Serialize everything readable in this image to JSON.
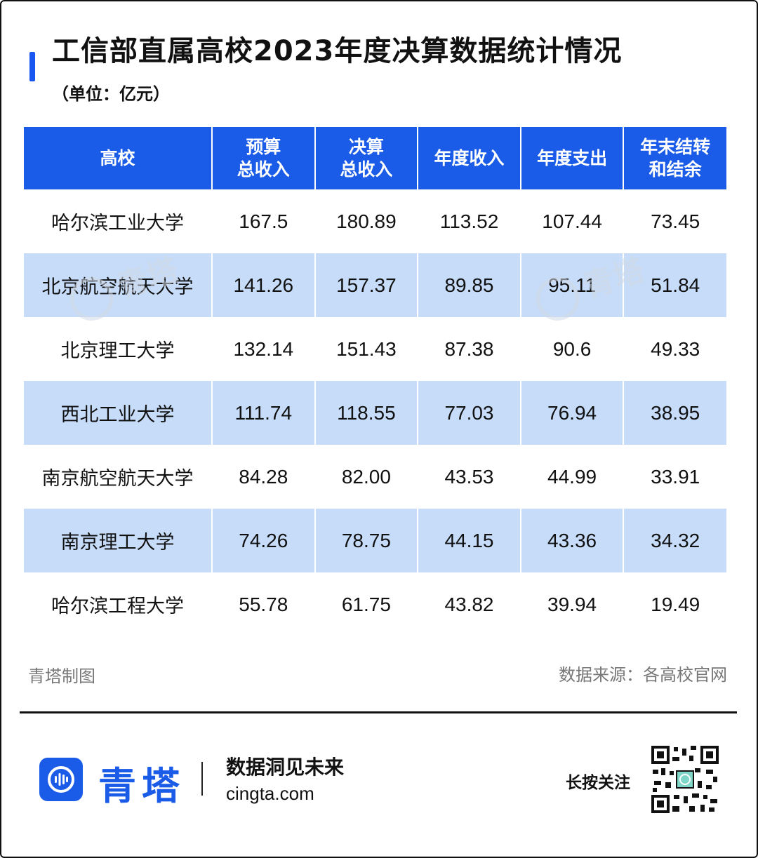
{
  "title": "工信部直属高校2023年度决算数据统计情况",
  "unit": "（单位：亿元）",
  "watermark": "青塔",
  "chart_data": {
    "type": "table",
    "columns": [
      {
        "line1": "高校",
        "line2": ""
      },
      {
        "line1": "预算",
        "line2": "总收入"
      },
      {
        "line1": "决算",
        "line2": "总收入"
      },
      {
        "line1": "年度收入",
        "line2": ""
      },
      {
        "line1": "年度支出",
        "line2": ""
      },
      {
        "line1": "年末结转",
        "line2": "和结余"
      }
    ],
    "rows": [
      [
        "哈尔滨工业大学",
        "167.5",
        "180.89",
        "113.52",
        "107.44",
        "73.45"
      ],
      [
        "北京航空航天大学",
        "141.26",
        "157.37",
        "89.85",
        "95.11",
        "51.84"
      ],
      [
        "北京理工大学",
        "132.14",
        "151.43",
        "87.38",
        "90.6",
        "49.33"
      ],
      [
        "西北工业大学",
        "111.74",
        "118.55",
        "77.03",
        "76.94",
        "38.95"
      ],
      [
        "南京航空航天大学",
        "84.28",
        "82.00",
        "43.53",
        "44.99",
        "33.91"
      ],
      [
        "南京理工大学",
        "74.26",
        "78.75",
        "44.15",
        "43.36",
        "34.32"
      ],
      [
        "哈尔滨工程大学",
        "55.78",
        "61.75",
        "43.82",
        "39.94",
        "19.49"
      ]
    ]
  },
  "footer": {
    "maker": "青塔制图",
    "source": "数据来源：各高校官网"
  },
  "brand": {
    "name": "青塔",
    "slogan": "数据洞见未来",
    "site": "cingta.com",
    "follow": "长按关注"
  },
  "colors": {
    "accent": "#1a5be8",
    "row_alt": "#c6dcf9"
  },
  "icons": [
    "cingta-logo-icon",
    "qr-code-icon"
  ]
}
